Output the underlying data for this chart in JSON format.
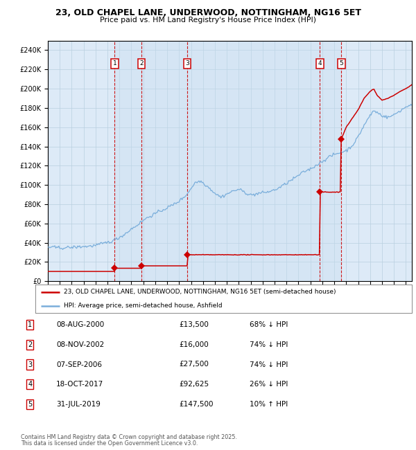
{
  "title": "23, OLD CHAPEL LANE, UNDERWOOD, NOTTINGHAM, NG16 5ET",
  "subtitle": "Price paid vs. HM Land Registry's House Price Index (HPI)",
  "legend_line1": "23, OLD CHAPEL LANE, UNDERWOOD, NOTTINGHAM, NG16 5ET (semi-detached house)",
  "legend_line2": "HPI: Average price, semi-detached house, Ashfield",
  "footer1": "Contains HM Land Registry data © Crown copyright and database right 2025.",
  "footer2": "This data is licensed under the Open Government Licence v3.0.",
  "hpi_color": "#7aaedb",
  "price_color": "#cc0000",
  "bg_color": "#ddeaf7",
  "transactions": [
    {
      "num": 1,
      "date": "08-AUG-2000",
      "price": 13500,
      "pct": "68%",
      "dir": "↓",
      "x": 2000.6
    },
    {
      "num": 2,
      "date": "08-NOV-2002",
      "price": 16000,
      "pct": "74%",
      "dir": "↓",
      "x": 2002.85
    },
    {
      "num": 3,
      "date": "07-SEP-2006",
      "price": 27500,
      "pct": "74%",
      "dir": "↓",
      "x": 2006.68
    },
    {
      "num": 4,
      "date": "18-OCT-2017",
      "price": 92625,
      "pct": "26%",
      "dir": "↓",
      "x": 2017.8
    },
    {
      "num": 5,
      "date": "31-JUL-2019",
      "price": 147500,
      "pct": "10%",
      "dir": "↑",
      "x": 2019.58
    }
  ],
  "ylim": [
    0,
    250000
  ],
  "xlim": [
    1995.0,
    2025.5
  ],
  "yticks": [
    0,
    20000,
    40000,
    60000,
    80000,
    100000,
    120000,
    140000,
    160000,
    180000,
    200000,
    220000,
    240000
  ],
  "hpi_anchors": [
    [
      1995.0,
      35500
    ],
    [
      1995.5,
      35000
    ],
    [
      1996.0,
      34500
    ],
    [
      1996.5,
      35000
    ],
    [
      1997.0,
      35500
    ],
    [
      1997.5,
      36000
    ],
    [
      1998.0,
      36500
    ],
    [
      1998.5,
      37000
    ],
    [
      1999.0,
      38000
    ],
    [
      1999.5,
      39500
    ],
    [
      2000.0,
      41000
    ],
    [
      2000.5,
      43000
    ],
    [
      2001.0,
      46000
    ],
    [
      2001.5,
      50000
    ],
    [
      2002.0,
      55000
    ],
    [
      2002.5,
      59000
    ],
    [
      2003.0,
      64000
    ],
    [
      2003.5,
      68000
    ],
    [
      2004.0,
      71000
    ],
    [
      2004.5,
      74000
    ],
    [
      2005.0,
      77000
    ],
    [
      2005.5,
      80000
    ],
    [
      2006.0,
      84000
    ],
    [
      2006.5,
      89000
    ],
    [
      2007.0,
      97000
    ],
    [
      2007.3,
      103000
    ],
    [
      2007.8,
      105000
    ],
    [
      2008.0,
      103000
    ],
    [
      2008.5,
      98000
    ],
    [
      2009.0,
      92000
    ],
    [
      2009.5,
      88000
    ],
    [
      2010.0,
      91000
    ],
    [
      2010.5,
      94000
    ],
    [
      2011.0,
      96000
    ],
    [
      2011.5,
      93000
    ],
    [
      2012.0,
      90000
    ],
    [
      2012.5,
      91000
    ],
    [
      2013.0,
      92000
    ],
    [
      2013.5,
      93000
    ],
    [
      2014.0,
      95000
    ],
    [
      2014.5,
      98000
    ],
    [
      2015.0,
      102000
    ],
    [
      2015.5,
      106000
    ],
    [
      2016.0,
      110000
    ],
    [
      2016.5,
      114000
    ],
    [
      2017.0,
      117000
    ],
    [
      2017.5,
      121000
    ],
    [
      2018.0,
      125000
    ],
    [
      2018.5,
      129000
    ],
    [
      2019.0,
      132000
    ],
    [
      2019.5,
      134000
    ],
    [
      2020.0,
      136000
    ],
    [
      2020.5,
      141000
    ],
    [
      2021.0,
      150000
    ],
    [
      2021.5,
      162000
    ],
    [
      2022.0,
      172000
    ],
    [
      2022.3,
      177000
    ],
    [
      2022.6,
      175000
    ],
    [
      2023.0,
      172000
    ],
    [
      2023.5,
      170000
    ],
    [
      2024.0,
      173000
    ],
    [
      2024.5,
      177000
    ],
    [
      2025.0,
      181000
    ],
    [
      2025.5,
      184000
    ]
  ],
  "price_anchors": [
    [
      1995.0,
      10200
    ],
    [
      2000.59,
      10200
    ],
    [
      2000.6,
      13500
    ],
    [
      2002.84,
      13500
    ],
    [
      2002.85,
      16000
    ],
    [
      2006.67,
      16000
    ],
    [
      2006.68,
      27500
    ],
    [
      2017.79,
      27500
    ],
    [
      2017.8,
      92625
    ],
    [
      2019.57,
      92625
    ],
    [
      2019.58,
      147500
    ],
    [
      2020.0,
      160000
    ],
    [
      2021.0,
      178000
    ],
    [
      2021.5,
      190000
    ],
    [
      2022.0,
      197000
    ],
    [
      2022.3,
      200000
    ],
    [
      2022.6,
      193000
    ],
    [
      2023.0,
      188000
    ],
    [
      2023.5,
      190000
    ],
    [
      2024.0,
      193000
    ],
    [
      2024.5,
      197000
    ],
    [
      2025.0,
      200000
    ],
    [
      2025.5,
      204000
    ]
  ]
}
